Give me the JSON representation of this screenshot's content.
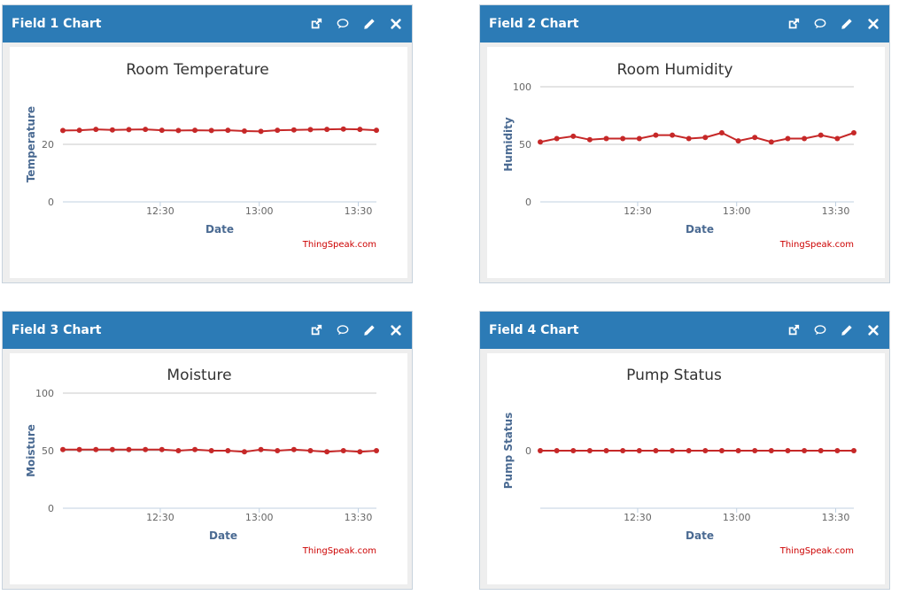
{
  "panels": [
    {
      "header": "Field 1 Chart",
      "icons": [
        "external-link-icon",
        "comment-icon",
        "pencil-icon",
        "close-icon"
      ],
      "credit": "ThingSpeak.com",
      "chart_data": {
        "type": "line",
        "title": "Room Temperature",
        "xlabel": "Date",
        "ylabel": "Temperature",
        "x_ticks": [
          "12:30",
          "13:00",
          "13:30"
        ],
        "x_range_minutes": [
          0,
          95
        ],
        "x_tick_positions_minutes": [
          29.5,
          59.5,
          89.5
        ],
        "y_ticks": [
          0,
          20
        ],
        "ylim": [
          0,
          40
        ],
        "series": [
          {
            "color": "#c62828",
            "x": [
              0,
              5,
              10,
              15,
              20,
              25,
              30,
              35,
              40,
              45,
              50,
              55,
              60,
              65,
              70,
              75,
              80,
              85,
              90,
              95
            ],
            "values": [
              24.8,
              24.9,
              25.2,
              25.0,
              25.1,
              25.2,
              24.9,
              24.8,
              24.9,
              24.8,
              24.9,
              24.6,
              24.5,
              24.9,
              25.0,
              25.1,
              25.2,
              25.3,
              25.2,
              24.9
            ]
          }
        ]
      }
    },
    {
      "header": "Field 2 Chart",
      "icons": [
        "external-link-icon",
        "comment-icon",
        "pencil-icon",
        "close-icon"
      ],
      "credit": "ThingSpeak.com",
      "chart_data": {
        "type": "line",
        "title": "Room Humidity",
        "xlabel": "Date",
        "ylabel": "Humidity",
        "x_ticks": [
          "12:30",
          "13:00",
          "13:30"
        ],
        "x_range_minutes": [
          0,
          95
        ],
        "x_tick_positions_minutes": [
          29.5,
          59.5,
          89.5
        ],
        "y_ticks": [
          0,
          50,
          100
        ],
        "ylim": [
          0,
          100
        ],
        "series": [
          {
            "color": "#c62828",
            "x": [
              0,
              5,
              10,
              15,
              20,
              25,
              30,
              35,
              40,
              45,
              50,
              55,
              60,
              65,
              70,
              75,
              80,
              85,
              90,
              95
            ],
            "values": [
              52,
              55,
              57,
              54,
              55,
              55,
              55,
              58,
              58,
              55,
              56,
              60,
              53,
              56,
              52,
              55,
              55,
              58,
              55,
              60
            ]
          }
        ]
      }
    },
    {
      "header": "Field 3 Chart",
      "icons": [
        "external-link-icon",
        "comment-icon",
        "pencil-icon",
        "close-icon"
      ],
      "credit": "ThingSpeak.com",
      "chart_data": {
        "type": "line",
        "title": "Moisture",
        "xlabel": "Date",
        "ylabel": "Moisture",
        "x_ticks": [
          "12:30",
          "13:00",
          "13:30"
        ],
        "x_range_minutes": [
          0,
          95
        ],
        "x_tick_positions_minutes": [
          29.5,
          59.5,
          89.5
        ],
        "y_ticks": [
          0,
          50,
          100
        ],
        "ylim": [
          0,
          100
        ],
        "series": [
          {
            "color": "#c62828",
            "x": [
              0,
              5,
              10,
              15,
              20,
              25,
              30,
              35,
              40,
              45,
              50,
              55,
              60,
              65,
              70,
              75,
              80,
              85,
              90,
              95
            ],
            "values": [
              51,
              51,
              51,
              51,
              51,
              51,
              51,
              50,
              51,
              50,
              50,
              49,
              51,
              50,
              51,
              50,
              49,
              50,
              49,
              50
            ]
          }
        ]
      }
    },
    {
      "header": "Field 4 Chart",
      "icons": [
        "external-link-icon",
        "comment-icon",
        "pencil-icon",
        "close-icon"
      ],
      "credit": "ThingSpeak.com",
      "chart_data": {
        "type": "line",
        "title": "Pump Status",
        "xlabel": "Date",
        "ylabel": "Pump Status",
        "x_ticks": [
          "12:30",
          "13:00",
          "13:30"
        ],
        "x_range_minutes": [
          0,
          95
        ],
        "x_tick_positions_minutes": [
          29.5,
          59.5,
          89.5
        ],
        "y_ticks": [
          0
        ],
        "ylim": [
          -1,
          1
        ],
        "series": [
          {
            "color": "#c62828",
            "x": [
              0,
              5,
              10,
              15,
              20,
              25,
              30,
              35,
              40,
              45,
              50,
              55,
              60,
              65,
              70,
              75,
              80,
              85,
              90,
              95
            ],
            "values": [
              0,
              0,
              0,
              0,
              0,
              0,
              0,
              0,
              0,
              0,
              0,
              0,
              0,
              0,
              0,
              0,
              0,
              0,
              0,
              0
            ]
          }
        ]
      }
    }
  ]
}
